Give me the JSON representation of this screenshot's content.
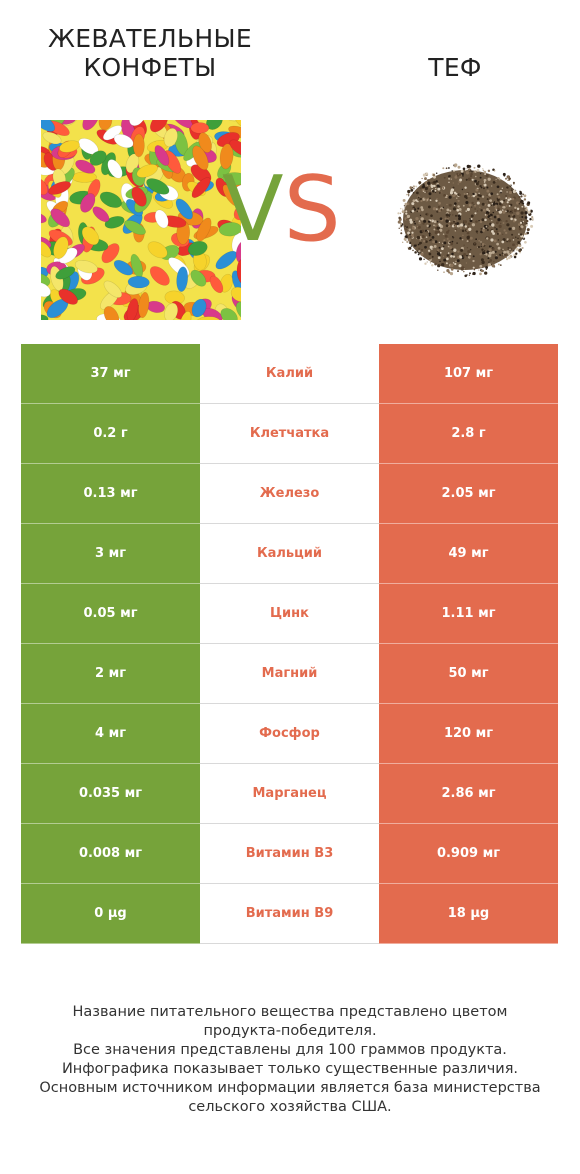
{
  "header": {
    "left_title_line1": "ЖЕВАТЕЛЬНЫЕ",
    "left_title_line2": "КОНФЕТЫ",
    "right_title": "ТЕФ",
    "vs_v": "V",
    "vs_s": "S"
  },
  "colors": {
    "left_accent": "#76a33a",
    "right_accent": "#e36b4e"
  },
  "rows": [
    {
      "left": "37 мг",
      "label": "Калий",
      "right": "107 мг"
    },
    {
      "left": "0.2 г",
      "label": "Клетчатка",
      "right": "2.8 г"
    },
    {
      "left": "0.13 мг",
      "label": "Железо",
      "right": "2.05 мг"
    },
    {
      "left": "3 мг",
      "label": "Кальций",
      "right": "49 мг"
    },
    {
      "left": "0.05 мг",
      "label": "Цинк",
      "right": "1.11 мг"
    },
    {
      "left": "2 мг",
      "label": "Магний",
      "right": "50 мг"
    },
    {
      "left": "4 мг",
      "label": "Фосфор",
      "right": "120 мг"
    },
    {
      "left": "0.035 мг",
      "label": "Марганец",
      "right": "2.86 мг"
    },
    {
      "left": "0.008 мг",
      "label": "Витамин B3",
      "right": "0.909 мг"
    },
    {
      "left": "0 µg",
      "label": "Витамин B9",
      "right": "18 µg"
    }
  ],
  "footer": {
    "line1": "Название питательного вещества представлено цветом",
    "line2": "продукта-победителя.",
    "line3": "Все значения представлены для 100 граммов продукта.",
    "line4": "Инфографика показывает только существенные различия.",
    "line5": "Основным источником информации является база министерства",
    "line6": "сельского хозяйства США."
  }
}
